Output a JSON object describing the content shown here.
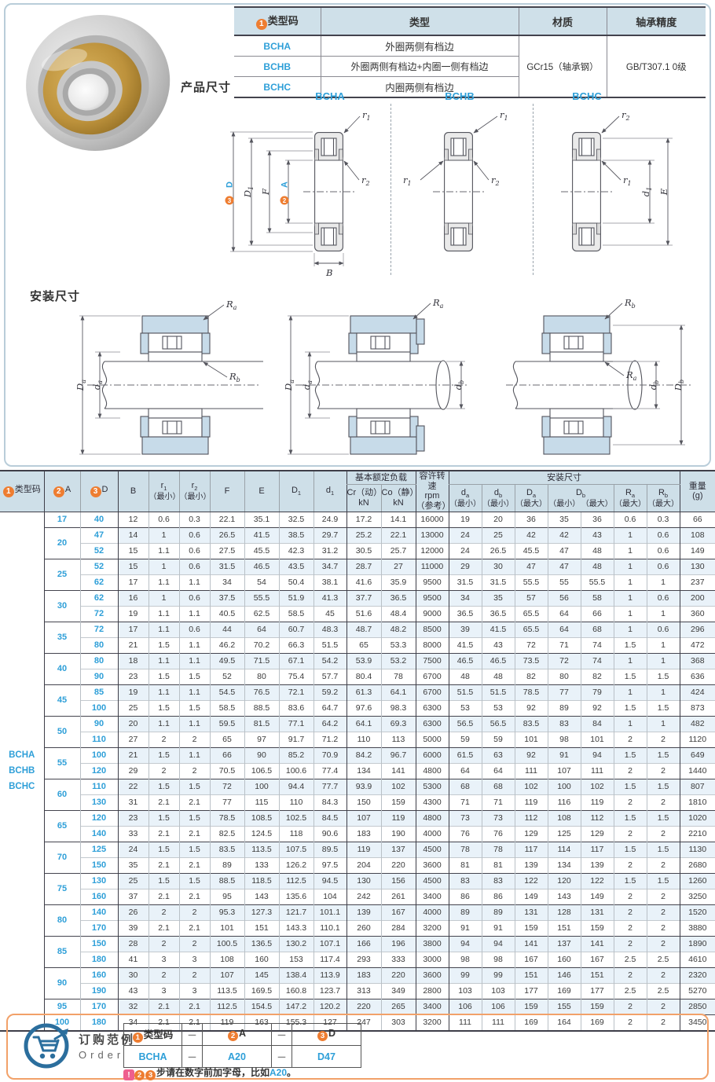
{
  "colors": {
    "accent_blue": "#2E9FD8",
    "accent_orange": "#EE7D31",
    "header_bg": "#CEDFE8",
    "alt_row": "#E9F2F9",
    "note_pink": "#EE5F8E",
    "order_border": "#F2A169",
    "cart_blue": "#2B6E9D"
  },
  "info_table": {
    "headers": {
      "type_badge": "1",
      "type": "类型码",
      "kind": "类型",
      "material": "材质",
      "precision": "轴承精度"
    },
    "rows": [
      {
        "code": "BCHA",
        "kind": "外圈两侧有档边"
      },
      {
        "code": "BCHB",
        "kind": "外圈两侧有档边+内圈一侧有档边"
      },
      {
        "code": "BCHC",
        "kind": "内圈两侧有档边"
      }
    ],
    "material": "GCr15（轴承钢）",
    "precision": "GB/T307.1 0级"
  },
  "sections": {
    "product": "产品尺寸",
    "install": "安装尺寸"
  },
  "diagram_labels": {
    "bcha": "BCHA",
    "bchb": "BCHB",
    "bchc": "BCHC"
  },
  "dims": {
    "D": "D",
    "A": "A",
    "B": "B",
    "E": "E",
    "F": "F",
    "badge1": "1",
    "badge2": "2",
    "badge3": "3",
    "r1": {
      "m": "r",
      "s": "1"
    },
    "r2": {
      "m": "r",
      "s": "2"
    },
    "D1": {
      "m": "D",
      "s": "1"
    },
    "d1": {
      "m": "d",
      "s": "1"
    },
    "Ra": {
      "m": "R",
      "s": "a"
    },
    "Rb": {
      "m": "R",
      "s": "b"
    },
    "Da": {
      "m": "D",
      "s": "a"
    },
    "da": {
      "m": "d",
      "s": "a"
    },
    "db": {
      "m": "d",
      "s": "b"
    },
    "Db": {
      "m": "D",
      "s": "b"
    }
  },
  "main_table": {
    "header": {
      "type_badge": "1",
      "type": "类型码",
      "a_badge": "2",
      "a": "A",
      "d_badge": "3",
      "d": "D",
      "b": "B",
      "min": "（最小）",
      "max": "（最大）",
      "load_group": "基本额定负载",
      "cr_l1": "Cr（动）",
      "cr_l2": "kN",
      "co_l1": "Co（静）",
      "co_l2": "kN",
      "speed_l1": "容许转速",
      "speed_l2": "rpm",
      "speed_l3": "（参考）",
      "install_group": "安装尺寸",
      "weight_l1": "重量",
      "weight_l2": "(g)",
      "f": "F",
      "e": "E"
    },
    "type_codes": [
      "BCHA",
      "BCHB",
      "BCHC"
    ],
    "groups": [
      {
        "a": "17",
        "rows": [
          [
            "40",
            "12",
            "0.6",
            "0.3",
            "22.1",
            "35.1",
            "32.5",
            "24.9",
            "17.2",
            "14.1",
            "16000",
            "19",
            "20",
            "36",
            "35",
            "36",
            "0.6",
            "0.3",
            "66"
          ]
        ]
      },
      {
        "a": "20",
        "rows": [
          [
            "47",
            "14",
            "1",
            "0.6",
            "26.5",
            "41.5",
            "38.5",
            "29.7",
            "25.2",
            "22.1",
            "13000",
            "24",
            "25",
            "42",
            "42",
            "43",
            "1",
            "0.6",
            "108"
          ],
          [
            "52",
            "15",
            "1.1",
            "0.6",
            "27.5",
            "45.5",
            "42.3",
            "31.2",
            "30.5",
            "25.7",
            "12000",
            "24",
            "26.5",
            "45.5",
            "47",
            "48",
            "1",
            "0.6",
            "149"
          ]
        ]
      },
      {
        "a": "25",
        "rows": [
          [
            "52",
            "15",
            "1",
            "0.6",
            "31.5",
            "46.5",
            "43.5",
            "34.7",
            "28.7",
            "27",
            "11000",
            "29",
            "30",
            "47",
            "47",
            "48",
            "1",
            "0.6",
            "130"
          ],
          [
            "62",
            "17",
            "1.1",
            "1.1",
            "34",
            "54",
            "50.4",
            "38.1",
            "41.6",
            "35.9",
            "9500",
            "31.5",
            "31.5",
            "55.5",
            "55",
            "55.5",
            "1",
            "1",
            "237"
          ]
        ]
      },
      {
        "a": "30",
        "rows": [
          [
            "62",
            "16",
            "1",
            "0.6",
            "37.5",
            "55.5",
            "51.9",
            "41.3",
            "37.7",
            "36.5",
            "9500",
            "34",
            "35",
            "57",
            "56",
            "58",
            "1",
            "0.6",
            "200"
          ],
          [
            "72",
            "19",
            "1.1",
            "1.1",
            "40.5",
            "62.5",
            "58.5",
            "45",
            "51.6",
            "48.4",
            "9000",
            "36.5",
            "36.5",
            "65.5",
            "64",
            "66",
            "1",
            "1",
            "360"
          ]
        ]
      },
      {
        "a": "35",
        "rows": [
          [
            "72",
            "17",
            "1.1",
            "0.6",
            "44",
            "64",
            "60.7",
            "48.3",
            "48.7",
            "48.2",
            "8500",
            "39",
            "41.5",
            "65.5",
            "64",
            "68",
            "1",
            "0.6",
            "296"
          ],
          [
            "80",
            "21",
            "1.5",
            "1.1",
            "46.2",
            "70.2",
            "66.3",
            "51.5",
            "65",
            "53.3",
            "8000",
            "41.5",
            "43",
            "72",
            "71",
            "74",
            "1.5",
            "1",
            "472"
          ]
        ]
      },
      {
        "a": "40",
        "rows": [
          [
            "80",
            "18",
            "1.1",
            "1.1",
            "49.5",
            "71.5",
            "67.1",
            "54.2",
            "53.9",
            "53.2",
            "7500",
            "46.5",
            "46.5",
            "73.5",
            "72",
            "74",
            "1",
            "1",
            "368"
          ],
          [
            "90",
            "23",
            "1.5",
            "1.5",
            "52",
            "80",
            "75.4",
            "57.7",
            "80.4",
            "78",
            "6700",
            "48",
            "48",
            "82",
            "80",
            "82",
            "1.5",
            "1.5",
            "636"
          ]
        ]
      },
      {
        "a": "45",
        "rows": [
          [
            "85",
            "19",
            "1.1",
            "1.1",
            "54.5",
            "76.5",
            "72.1",
            "59.2",
            "61.3",
            "64.1",
            "6700",
            "51.5",
            "51.5",
            "78.5",
            "77",
            "79",
            "1",
            "1",
            "424"
          ],
          [
            "100",
            "25",
            "1.5",
            "1.5",
            "58.5",
            "88.5",
            "83.6",
            "64.7",
            "97.6",
            "98.3",
            "6300",
            "53",
            "53",
            "92",
            "89",
            "92",
            "1.5",
            "1.5",
            "873"
          ]
        ]
      },
      {
        "a": "50",
        "rows": [
          [
            "90",
            "20",
            "1.1",
            "1.1",
            "59.5",
            "81.5",
            "77.1",
            "64.2",
            "64.1",
            "69.3",
            "6300",
            "56.5",
            "56.5",
            "83.5",
            "83",
            "84",
            "1",
            "1",
            "482"
          ],
          [
            "110",
            "27",
            "2",
            "2",
            "65",
            "97",
            "91.7",
            "71.2",
            "110",
            "113",
            "5000",
            "59",
            "59",
            "101",
            "98",
            "101",
            "2",
            "2",
            "1120"
          ]
        ]
      },
      {
        "a": "55",
        "rows": [
          [
            "100",
            "21",
            "1.5",
            "1.1",
            "66",
            "90",
            "85.2",
            "70.9",
            "84.2",
            "96.7",
            "6000",
            "61.5",
            "63",
            "92",
            "91",
            "94",
            "1.5",
            "1.5",
            "649"
          ],
          [
            "120",
            "29",
            "2",
            "2",
            "70.5",
            "106.5",
            "100.6",
            "77.4",
            "134",
            "141",
            "4800",
            "64",
            "64",
            "111",
            "107",
            "111",
            "2",
            "2",
            "1440"
          ]
        ]
      },
      {
        "a": "60",
        "rows": [
          [
            "110",
            "22",
            "1.5",
            "1.5",
            "72",
            "100",
            "94.4",
            "77.7",
            "93.9",
            "102",
            "5300",
            "68",
            "68",
            "102",
            "100",
            "102",
            "1.5",
            "1.5",
            "807"
          ],
          [
            "130",
            "31",
            "2.1",
            "2.1",
            "77",
            "115",
            "110",
            "84.3",
            "150",
            "159",
            "4300",
            "71",
            "71",
            "119",
            "116",
            "119",
            "2",
            "2",
            "1810"
          ]
        ]
      },
      {
        "a": "65",
        "rows": [
          [
            "120",
            "23",
            "1.5",
            "1.5",
            "78.5",
            "108.5",
            "102.5",
            "84.5",
            "107",
            "119",
            "4800",
            "73",
            "73",
            "112",
            "108",
            "112",
            "1.5",
            "1.5",
            "1020"
          ],
          [
            "140",
            "33",
            "2.1",
            "2.1",
            "82.5",
            "124.5",
            "118",
            "90.6",
            "183",
            "190",
            "4000",
            "76",
            "76",
            "129",
            "125",
            "129",
            "2",
            "2",
            "2210"
          ]
        ]
      },
      {
        "a": "70",
        "rows": [
          [
            "125",
            "24",
            "1.5",
            "1.5",
            "83.5",
            "113.5",
            "107.5",
            "89.5",
            "119",
            "137",
            "4500",
            "78",
            "78",
            "117",
            "114",
            "117",
            "1.5",
            "1.5",
            "1130"
          ],
          [
            "150",
            "35",
            "2.1",
            "2.1",
            "89",
            "133",
            "126.2",
            "97.5",
            "204",
            "220",
            "3600",
            "81",
            "81",
            "139",
            "134",
            "139",
            "2",
            "2",
            "2680"
          ]
        ]
      },
      {
        "a": "75",
        "rows": [
          [
            "130",
            "25",
            "1.5",
            "1.5",
            "88.5",
            "118.5",
            "112.5",
            "94.5",
            "130",
            "156",
            "4500",
            "83",
            "83",
            "122",
            "120",
            "122",
            "1.5",
            "1.5",
            "1260"
          ],
          [
            "160",
            "37",
            "2.1",
            "2.1",
            "95",
            "143",
            "135.6",
            "104",
            "242",
            "261",
            "3400",
            "86",
            "86",
            "149",
            "143",
            "149",
            "2",
            "2",
            "3250"
          ]
        ]
      },
      {
        "a": "80",
        "rows": [
          [
            "140",
            "26",
            "2",
            "2",
            "95.3",
            "127.3",
            "121.7",
            "101.1",
            "139",
            "167",
            "4000",
            "89",
            "89",
            "131",
            "128",
            "131",
            "2",
            "2",
            "1520"
          ],
          [
            "170",
            "39",
            "2.1",
            "2.1",
            "101",
            "151",
            "143.3",
            "110.1",
            "260",
            "284",
            "3200",
            "91",
            "91",
            "159",
            "151",
            "159",
            "2",
            "2",
            "3880"
          ]
        ]
      },
      {
        "a": "85",
        "rows": [
          [
            "150",
            "28",
            "2",
            "2",
            "100.5",
            "136.5",
            "130.2",
            "107.1",
            "166",
            "196",
            "3800",
            "94",
            "94",
            "141",
            "137",
            "141",
            "2",
            "2",
            "1890"
          ],
          [
            "180",
            "41",
            "3",
            "3",
            "108",
            "160",
            "153",
            "117.4",
            "293",
            "333",
            "3000",
            "98",
            "98",
            "167",
            "160",
            "167",
            "2.5",
            "2.5",
            "4610"
          ]
        ]
      },
      {
        "a": "90",
        "rows": [
          [
            "160",
            "30",
            "2",
            "2",
            "107",
            "145",
            "138.4",
            "113.9",
            "183",
            "220",
            "3600",
            "99",
            "99",
            "151",
            "146",
            "151",
            "2",
            "2",
            "2320"
          ],
          [
            "190",
            "43",
            "3",
            "3",
            "113.5",
            "169.5",
            "160.8",
            "123.7",
            "313",
            "349",
            "2800",
            "103",
            "103",
            "177",
            "169",
            "177",
            "2.5",
            "2.5",
            "5270"
          ]
        ]
      },
      {
        "a": "95",
        "rows": [
          [
            "170",
            "32",
            "2.1",
            "2.1",
            "112.5",
            "154.5",
            "147.2",
            "120.2",
            "220",
            "265",
            "3400",
            "106",
            "106",
            "159",
            "155",
            "159",
            "2",
            "2",
            "2850"
          ]
        ]
      },
      {
        "a": "100",
        "rows": [
          [
            "180",
            "34",
            "2.1",
            "2.1",
            "119",
            "163",
            "155.3",
            "127",
            "247",
            "303",
            "3200",
            "111",
            "111",
            "169",
            "164",
            "169",
            "2",
            "2",
            "3450"
          ]
        ]
      }
    ]
  },
  "order": {
    "title_cn": "订购范例",
    "title_en": "Order",
    "headers": [
      {
        "badge": "1",
        "label": "类型码"
      },
      {
        "label": "－"
      },
      {
        "badge": "2",
        "label": "A"
      },
      {
        "label": "－"
      },
      {
        "badge": "3",
        "label": "D"
      }
    ],
    "values": [
      "BCHA",
      "－",
      "A20",
      "－",
      "D47"
    ],
    "note_badge": "!",
    "note_step2": "2",
    "note_step3": "3",
    "note_text": "步请在数字前加字母，比如",
    "note_highlight": "A20",
    "note_suffix": "。"
  }
}
